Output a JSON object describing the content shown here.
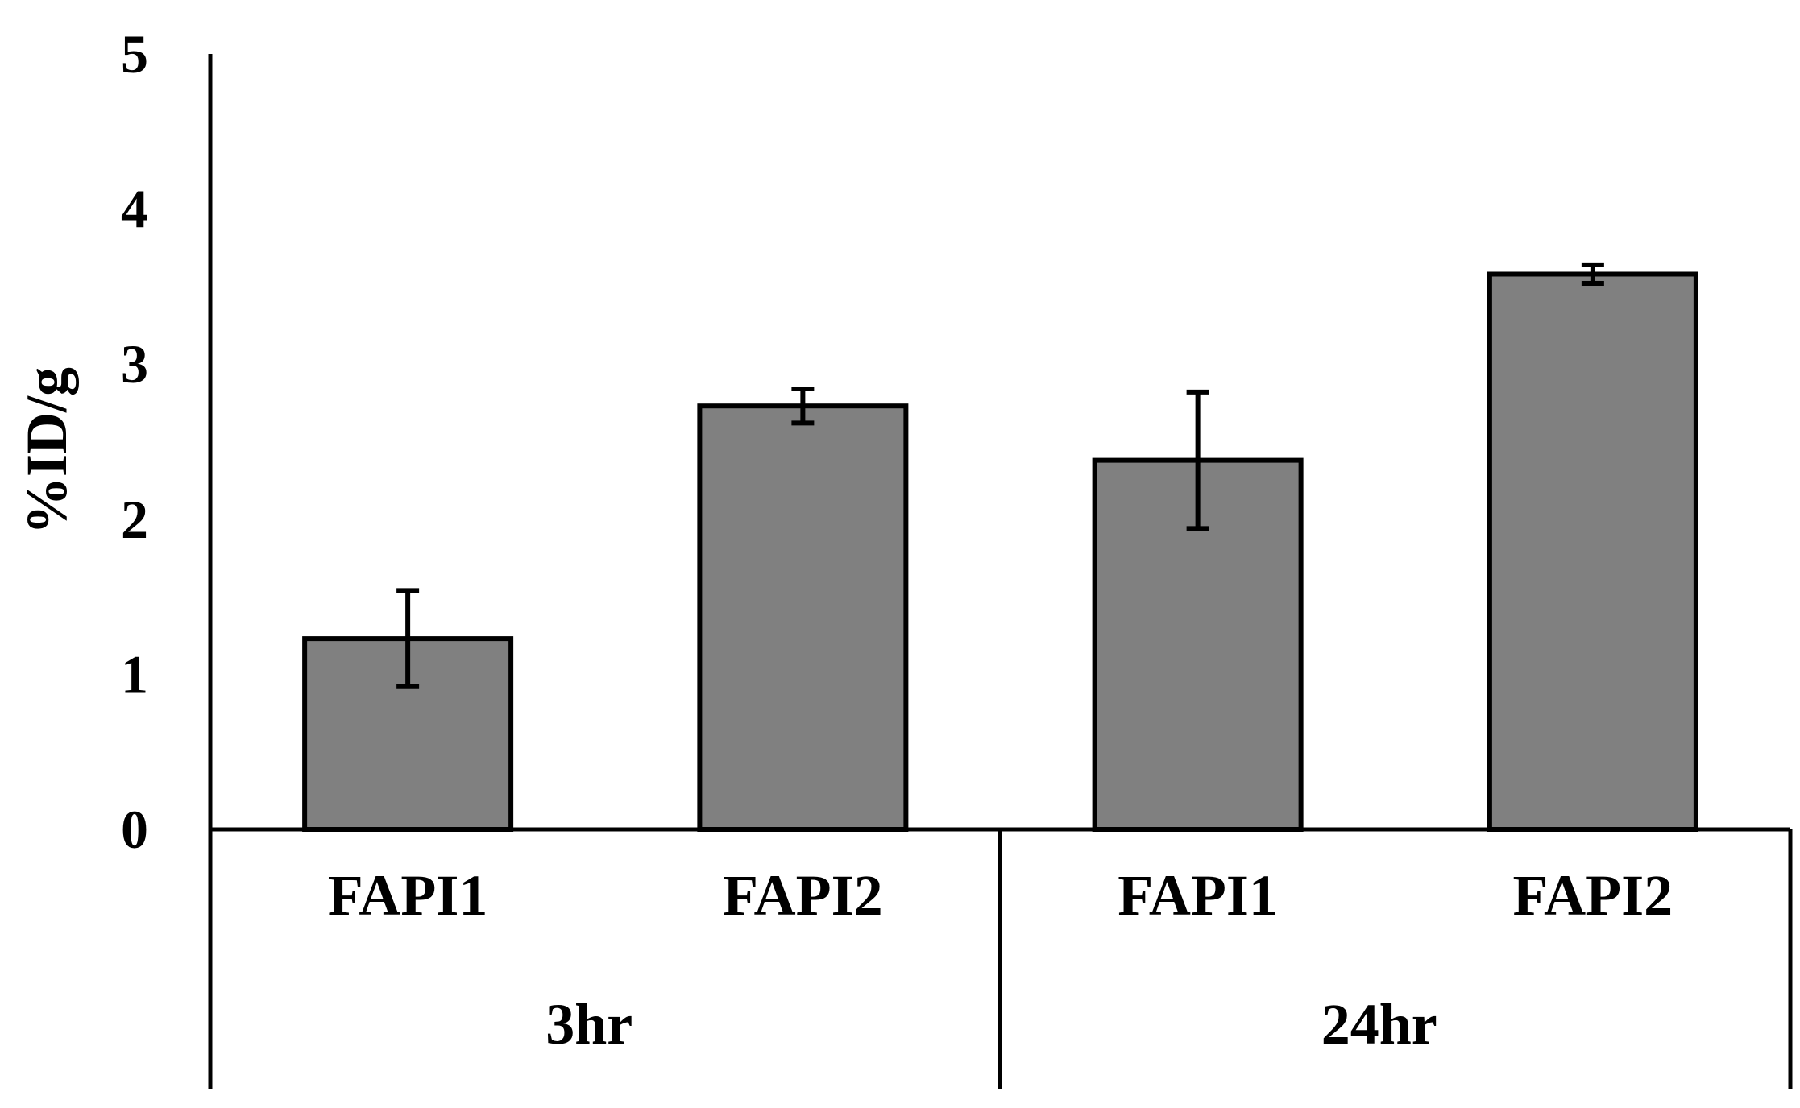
{
  "chart_data": {
    "type": "bar",
    "title": "",
    "xlabel": "",
    "ylabel": "%ID/g",
    "ylim": [
      0,
      5
    ],
    "yticks": [
      "0",
      "1",
      "2",
      "3",
      "4",
      "5"
    ],
    "grid": false,
    "legend": "none",
    "groups": [
      {
        "label": "3hr",
        "bars": [
          {
            "category": "FAPI1",
            "value": 1.23,
            "error": 0.31
          },
          {
            "category": "FAPI2",
            "value": 2.73,
            "error": 0.11
          }
        ]
      },
      {
        "label": "24hr",
        "bars": [
          {
            "category": "FAPI1",
            "value": 2.38,
            "error": 0.44
          },
          {
            "category": "FAPI2",
            "value": 3.58,
            "error": 0.06
          }
        ]
      }
    ],
    "colors": {
      "bar_fill": "#808080",
      "bar_stroke": "#000000",
      "axis": "#000000"
    }
  }
}
